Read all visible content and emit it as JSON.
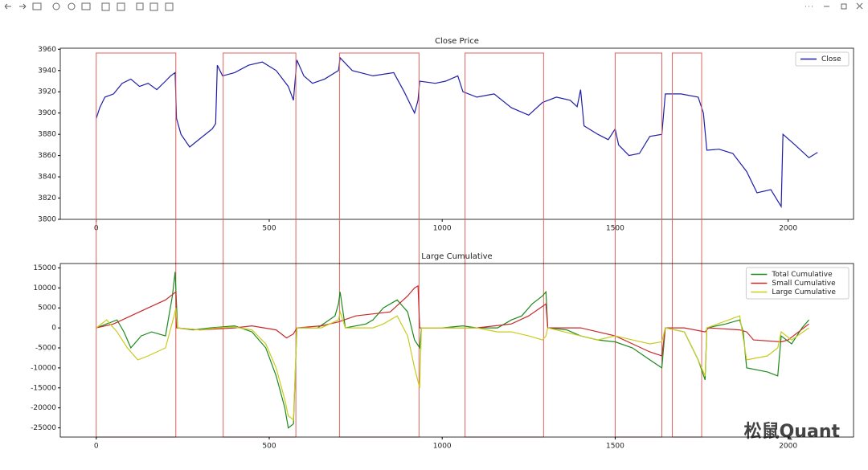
{
  "chart_data": [
    {
      "type": "line",
      "title": "Close Price",
      "legend": "upper right",
      "xlim": [
        -104,
        2189
      ],
      "ylim": [
        3800,
        3961
      ],
      "xticks": [
        0,
        500,
        1000,
        1500,
        2000
      ],
      "yticks": [
        3800,
        3820,
        3840,
        3860,
        3880,
        3900,
        3920,
        3940,
        3960
      ],
      "highlight_x": [
        [
          0,
          230
        ],
        [
          367,
          577
        ],
        [
          703,
          933
        ],
        [
          1066,
          1293
        ],
        [
          1500,
          1635
        ],
        [
          1665,
          1750
        ]
      ],
      "series": [
        {
          "name": "Close",
          "color": "#1f1fa8",
          "x": [
            0,
            10,
            25,
            50,
            75,
            100,
            125,
            150,
            175,
            200,
            215,
            228,
            232,
            245,
            270,
            300,
            335,
            345,
            350,
            365,
            400,
            440,
            480,
            520,
            555,
            570,
            580,
            600,
            625,
            660,
            700,
            705,
            740,
            800,
            860,
            890,
            920,
            930,
            935,
            980,
            1010,
            1045,
            1060,
            1100,
            1150,
            1200,
            1250,
            1290,
            1330,
            1370,
            1390,
            1400,
            1410,
            1450,
            1480,
            1500,
            1510,
            1540,
            1570,
            1600,
            1635,
            1645,
            1690,
            1740,
            1755,
            1765,
            1800,
            1840,
            1880,
            1910,
            1950,
            1980,
            1985,
            2020,
            2060,
            2085
          ],
          "values": [
            3895,
            3905,
            3915,
            3918,
            3928,
            3932,
            3925,
            3928,
            3922,
            3930,
            3935,
            3938,
            3895,
            3880,
            3868,
            3876,
            3885,
            3890,
            3945,
            3935,
            3938,
            3945,
            3948,
            3940,
            3925,
            3912,
            3950,
            3935,
            3928,
            3932,
            3940,
            3952,
            3940,
            3935,
            3938,
            3920,
            3900,
            3912,
            3930,
            3928,
            3930,
            3935,
            3920,
            3915,
            3918,
            3905,
            3898,
            3910,
            3915,
            3912,
            3906,
            3922,
            3888,
            3880,
            3875,
            3885,
            3870,
            3860,
            3862,
            3878,
            3880,
            3918,
            3918,
            3915,
            3900,
            3865,
            3866,
            3862,
            3845,
            3825,
            3828,
            3812,
            3880,
            3870,
            3858,
            3863
          ]
        }
      ]
    },
    {
      "type": "line",
      "title": "Large Cumulative",
      "legend": "upper right",
      "xlim": [
        -104,
        2189
      ],
      "ylim": [
        -27300,
        16100
      ],
      "xticks": [
        0,
        500,
        1000,
        1500,
        2000
      ],
      "yticks": [
        -25000,
        -20000,
        -15000,
        -10000,
        -5000,
        0,
        5000,
        10000,
        15000
      ],
      "series": [
        {
          "name": "Total Cumulative",
          "color": "#1e8a1e",
          "x": [
            0,
            30,
            60,
            80,
            100,
            130,
            160,
            200,
            220,
            228,
            235,
            280,
            330,
            400,
            450,
            490,
            520,
            545,
            555,
            570,
            580,
            640,
            690,
            700,
            705,
            720,
            780,
            800,
            830,
            870,
            900,
            920,
            935,
            940,
            1000,
            1060,
            1100,
            1160,
            1200,
            1230,
            1260,
            1290,
            1300,
            1305,
            1360,
            1400,
            1450,
            1500,
            1550,
            1600,
            1635,
            1645,
            1700,
            1740,
            1760,
            1765,
            1820,
            1860,
            1870,
            1880,
            1940,
            1970,
            1980,
            2010,
            2040,
            2060
          ],
          "values": [
            0,
            1000,
            2000,
            -1000,
            -5000,
            -2000,
            -1000,
            -2000,
            8000,
            14000,
            0,
            -500,
            0,
            500,
            -1000,
            -5000,
            -12000,
            -20000,
            -25000,
            -24000,
            0,
            0,
            3000,
            6000,
            9000,
            0,
            1000,
            2000,
            5000,
            7000,
            4000,
            -3000,
            -5000,
            0,
            0,
            500,
            0,
            0,
            2000,
            3000,
            6000,
            8000,
            9000,
            0,
            -500,
            -2000,
            -3000,
            -3500,
            -5000,
            -8000,
            -10000,
            0,
            -1000,
            -8000,
            -13000,
            0,
            1000,
            2000,
            -1000,
            -10000,
            -11000,
            -12000,
            -2000,
            -4000,
            0,
            2000
          ]
        },
        {
          "name": "Small Cumulative",
          "color": "#c8282a",
          "x": [
            0,
            50,
            100,
            150,
            200,
            230,
            232,
            300,
            400,
            450,
            520,
            550,
            570,
            580,
            650,
            700,
            750,
            800,
            850,
            900,
            920,
            930,
            935,
            1000,
            1100,
            1200,
            1250,
            1300,
            1305,
            1400,
            1450,
            1500,
            1550,
            1600,
            1635,
            1645,
            1700,
            1760,
            1770,
            1860,
            1880,
            1900,
            1980,
            2000,
            2060
          ],
          "values": [
            0,
            1000,
            3000,
            5000,
            7000,
            9000,
            0,
            -500,
            0,
            500,
            -500,
            -2500,
            -1500,
            0,
            500,
            1500,
            3000,
            3500,
            4000,
            8000,
            10000,
            10500,
            0,
            0,
            0,
            1000,
            3000,
            6000,
            0,
            0,
            -1000,
            -2000,
            -4000,
            -6000,
            -7000,
            0,
            0,
            -1000,
            0,
            -500,
            -1000,
            -3000,
            -3500,
            -3000,
            1000
          ]
        },
        {
          "name": "Large Cumulative",
          "color": "#c8cc1e",
          "x": [
            0,
            30,
            60,
            90,
            120,
            150,
            200,
            225,
            230,
            235,
            300,
            350,
            400,
            450,
            490,
            520,
            545,
            555,
            570,
            580,
            650,
            700,
            705,
            720,
            800,
            830,
            870,
            900,
            920,
            935,
            940,
            1000,
            1100,
            1160,
            1200,
            1250,
            1290,
            1300,
            1305,
            1400,
            1450,
            1500,
            1550,
            1600,
            1635,
            1645,
            1700,
            1740,
            1760,
            1765,
            1860,
            1880,
            1940,
            1970,
            1980,
            2010,
            2060
          ],
          "values": [
            0,
            2000,
            -1000,
            -5000,
            -8000,
            -7000,
            -5000,
            3000,
            5000,
            0,
            -500,
            0,
            200,
            -500,
            -4000,
            -10000,
            -18000,
            -22000,
            -23000,
            0,
            0,
            2000,
            4000,
            0,
            0,
            1000,
            3000,
            -2000,
            -10000,
            -15000,
            0,
            0,
            0,
            -1000,
            -1000,
            -2000,
            -3000,
            -2000,
            0,
            -2000,
            -3000,
            -2000,
            -3000,
            -4000,
            -3500,
            0,
            -1000,
            -8000,
            -12000,
            0,
            3000,
            -8000,
            -7000,
            -5000,
            -1000,
            -3000,
            0
          ]
        }
      ]
    }
  ],
  "watermark": "松鼠Quant"
}
